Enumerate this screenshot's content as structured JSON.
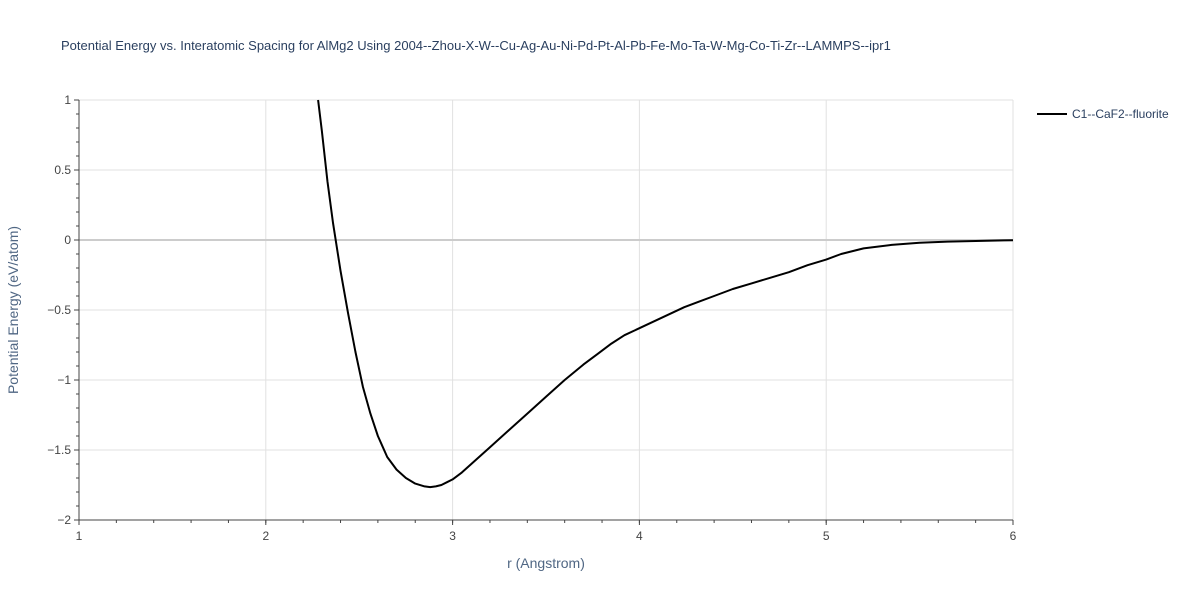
{
  "chart_data": {
    "type": "line",
    "title": "Potential Energy vs. Interatomic Spacing for AlMg2 Using 2004--Zhou-X-W--Cu-Ag-Au-Ni-Pd-Pt-Al-Pb-Fe-Mo-Ta-W-Mg-Co-Ti-Zr--LAMMPS--ipr1",
    "xlabel": "r (Angstrom)",
    "ylabel": "Potential Energy (eV/atom)",
    "xlim": [
      1,
      6
    ],
    "ylim": [
      -2,
      1
    ],
    "x_ticks": [
      1,
      2,
      3,
      4,
      5,
      6
    ],
    "x_tick_labels": [
      "1",
      "2",
      "3",
      "4",
      "5",
      "6"
    ],
    "y_ticks": [
      1,
      0.5,
      0,
      -0.5,
      -1,
      -1.5,
      -2
    ],
    "y_tick_labels": [
      "1",
      "0.5",
      "0",
      "−0.5",
      "−1",
      "−1.5",
      "−2"
    ],
    "grid": true,
    "legend_position": "top-right",
    "series": [
      {
        "name": "C1--CaF2--fluorite",
        "color": "#000000",
        "x": [
          2.28,
          2.3,
          2.33,
          2.36,
          2.4,
          2.44,
          2.48,
          2.52,
          2.56,
          2.6,
          2.65,
          2.7,
          2.75,
          2.8,
          2.85,
          2.88,
          2.91,
          2.94,
          2.97,
          3.0,
          3.05,
          3.1,
          3.2,
          3.3,
          3.4,
          3.5,
          3.6,
          3.7,
          3.78,
          3.85,
          3.92,
          4.0,
          4.08,
          4.16,
          4.24,
          4.32,
          4.4,
          4.5,
          4.6,
          4.7,
          4.8,
          4.9,
          5.0,
          5.08,
          5.2,
          5.35,
          5.5,
          5.65,
          5.8,
          5.95,
          6.0
        ],
        "y": [
          1.0,
          0.78,
          0.42,
          0.12,
          -0.22,
          -0.52,
          -0.8,
          -1.05,
          -1.24,
          -1.4,
          -1.55,
          -1.64,
          -1.7,
          -1.74,
          -1.76,
          -1.765,
          -1.76,
          -1.75,
          -1.73,
          -1.71,
          -1.66,
          -1.6,
          -1.48,
          -1.36,
          -1.24,
          -1.12,
          -1.0,
          -0.89,
          -0.81,
          -0.74,
          -0.68,
          -0.63,
          -0.58,
          -0.53,
          -0.48,
          -0.44,
          -0.4,
          -0.35,
          -0.31,
          -0.27,
          -0.23,
          -0.18,
          -0.14,
          -0.1,
          -0.06,
          -0.035,
          -0.02,
          -0.012,
          -0.007,
          -0.003,
          -0.002
        ]
      }
    ]
  }
}
